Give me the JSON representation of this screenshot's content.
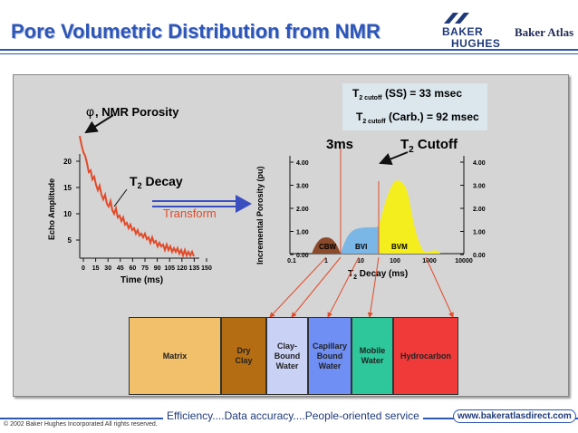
{
  "header": {
    "title": "Pore Volumetric Distribution from NMR",
    "logo_baker_hughes_line1": "BAKER",
    "logo_baker_hughes_line2": "HUGHES",
    "logo_baker_atlas": "Baker Atlas"
  },
  "decay_plot": {
    "porosity_label": ", NMR Porosity",
    "phi_symbol": "φ",
    "decay_label": "T",
    "decay_sub": "2",
    "decay_label_rest": " Decay",
    "ylabel": "Echo Amplitude",
    "yticks": [
      "20",
      "15",
      "10",
      "5"
    ],
    "xlabel": "Time (ms)",
    "xticks": [
      "0",
      "15",
      "30",
      "45",
      "60",
      "75",
      "90",
      "105",
      "120",
      "135",
      "150"
    ]
  },
  "transform_label": "Transform",
  "distribution_plot": {
    "cutoff_ss_pre": "T",
    "cutoff_ss_sub": "2 cutoff",
    "cutoff_ss_post": " (SS) = 33 msec",
    "cutoff_carb_pre": "T",
    "cutoff_carb_sub": "2 cutoff",
    "cutoff_carb_post": " (Carb.) = 92 msec",
    "label_3ms": "3ms",
    "t2_cutoff_pre": "T",
    "t2_cutoff_sub": "2",
    "t2_cutoff_post": " Cutoff",
    "ylabel": "Incremental Porosity (pu)",
    "yticks_left": [
      "4.00",
      "3.00",
      "2.00",
      "1.00",
      "0.00"
    ],
    "yticks_right": [
      "4.00",
      "3.00",
      "2.00",
      "1.00",
      "0.00"
    ],
    "xticks": [
      "0.1",
      "1",
      "10",
      "100",
      "1000",
      "10000"
    ],
    "xlabel_pre": "T",
    "xlabel_sub": "2",
    "xlabel_post": " Decay (ms)",
    "regions": [
      "CBW",
      "BVI",
      "BVM"
    ],
    "colors": {
      "cbw": "#8b4a2b",
      "bvi": "#7ab6e6",
      "bvm": "#f5ee1e",
      "cutoff_line": "#e24b2a"
    }
  },
  "volume_boxes": [
    {
      "label": "Matrix",
      "color": "#f2c06b"
    },
    {
      "label": "Dry Clay",
      "color": "#b46d12"
    },
    {
      "label": "Clay-Bound Water",
      "color": "#c9d1f5"
    },
    {
      "label": "Capillary Bound Water",
      "color": "#6f8ff5"
    },
    {
      "label": "Mobile Water",
      "color": "#2ec79b"
    },
    {
      "label": "Hydrocarbon",
      "color": "#f03a3a"
    }
  ],
  "footer": {
    "tagline": "Efficiency....Data accuracy....People-oriented service",
    "website": "www.bakeratlasdirect.com",
    "copyright": "© 2002 Baker Hughes Incorporated All rights reserved."
  }
}
